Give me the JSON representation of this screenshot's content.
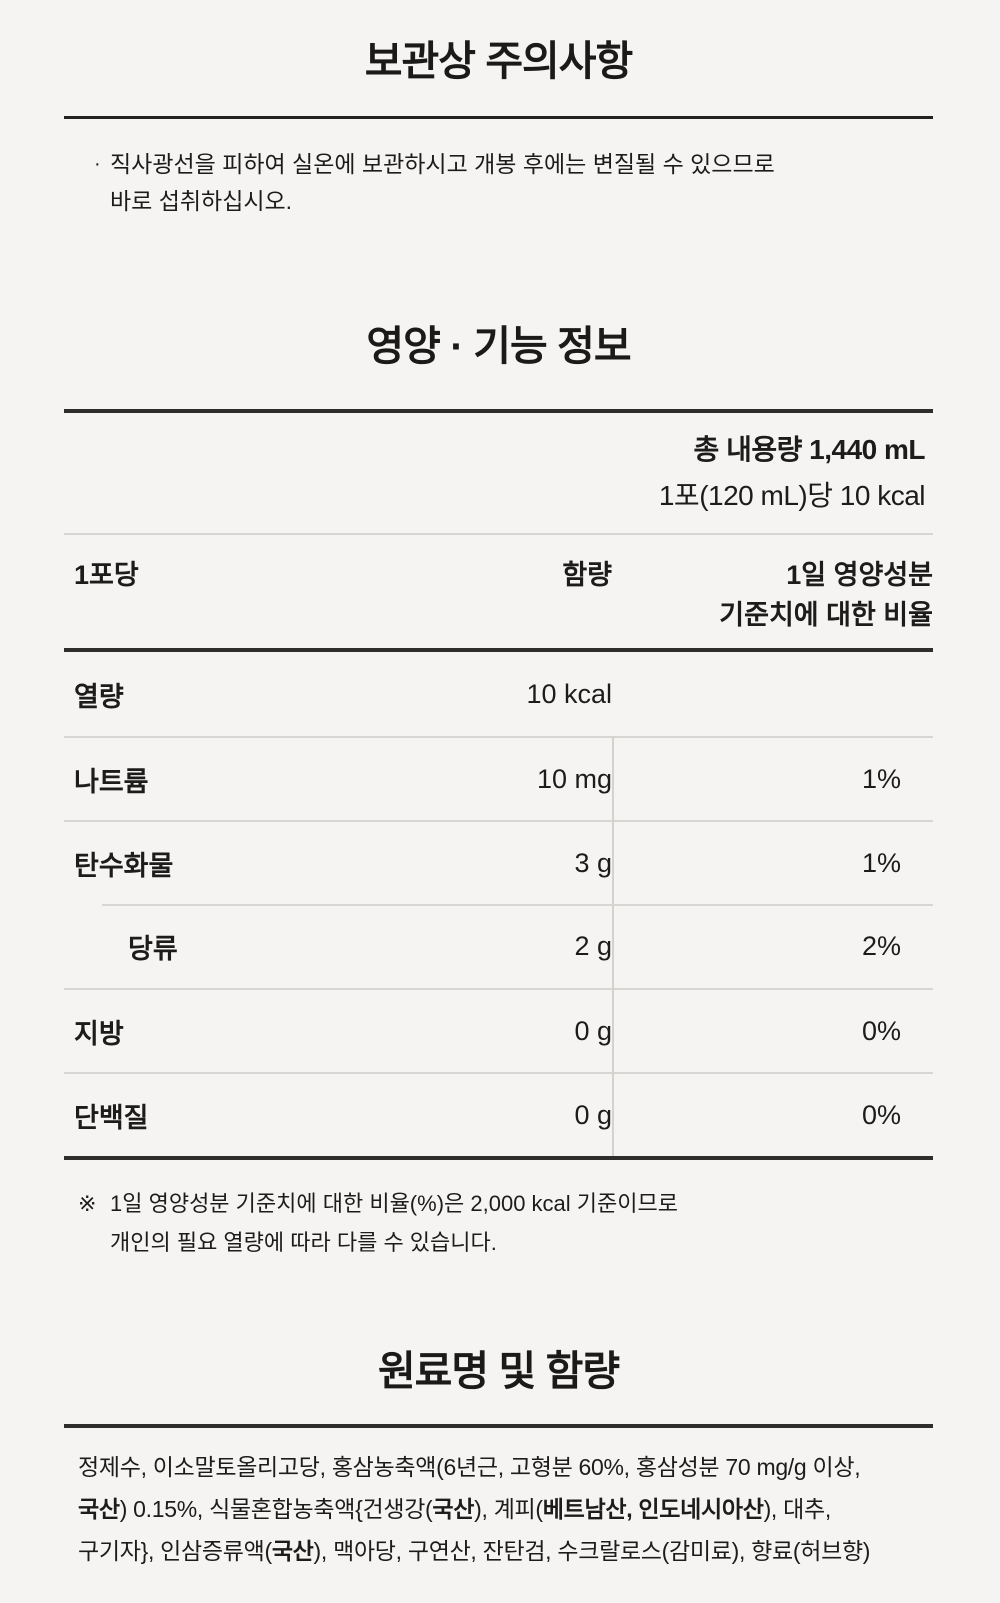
{
  "storage": {
    "title": "보관상 주의사항",
    "bullet": "·",
    "note_line1": "직사광선을 피하여 실온에 보관하시고 개봉 후에는 변질될 수 있으므로",
    "note_line2": "바로 섭취하십시오."
  },
  "nutrition": {
    "title": "영양 · 기능 정보",
    "total_volume": "총 내용량 1,440 mL",
    "per_serving": "1포(120 mL)당 10 kcal",
    "header": {
      "serving": "1포당",
      "amount": "함량",
      "daily_value_line1": "1일 영양성분",
      "daily_value_line2": "기준치에 대한 비율"
    },
    "rows": [
      {
        "name": "열량",
        "amount": "10 kcal",
        "percent": ""
      },
      {
        "name": "나트륨",
        "amount": "10 mg",
        "percent": "1%"
      },
      {
        "name": "탄수화물",
        "amount": "3 g",
        "percent": "1%"
      },
      {
        "name": "당류",
        "amount": "2 g",
        "percent": "2%"
      },
      {
        "name": "지방",
        "amount": "0 g",
        "percent": "0%"
      },
      {
        "name": "단백질",
        "amount": "0 g",
        "percent": "0%"
      }
    ],
    "footnote_symbol": "※",
    "footnote_line1": "1일 영양성분 기준치에 대한 비율(%)은 2,000 kcal 기준이므로",
    "footnote_line2": "개인의 필요 열량에 따라 다를 수 있습니다."
  },
  "ingredients": {
    "title": "원료명 및 함량",
    "segments": [
      {
        "text": "정제수, 이소말토올리고당, 홍삼농축액(6년근, 고형분 60%, 홍삼성분 70 mg/g 이상,",
        "bold": false
      },
      {
        "text": "국산",
        "bold": true
      },
      {
        "text": ") 0.15%, 식물혼합농축액{건생강(",
        "bold": false
      },
      {
        "text": "국산",
        "bold": true
      },
      {
        "text": "), 계피(",
        "bold": false
      },
      {
        "text": "베트남산, 인도네시아산",
        "bold": true
      },
      {
        "text": "), 대추,",
        "bold": false
      },
      {
        "text": "구기자}, 인삼증류액(",
        "bold": false
      },
      {
        "text": "국산",
        "bold": true
      },
      {
        "text": "), 맥아당, 구연산, 잔탄검, 수크랄로스(감미료), 향료(허브향)",
        "bold": false
      }
    ]
  },
  "colors": {
    "background": "#f5f4f2",
    "text": "#1d1c1a",
    "rule_dark": "#2e2d2b",
    "rule_light": "#d8d6d3"
  }
}
